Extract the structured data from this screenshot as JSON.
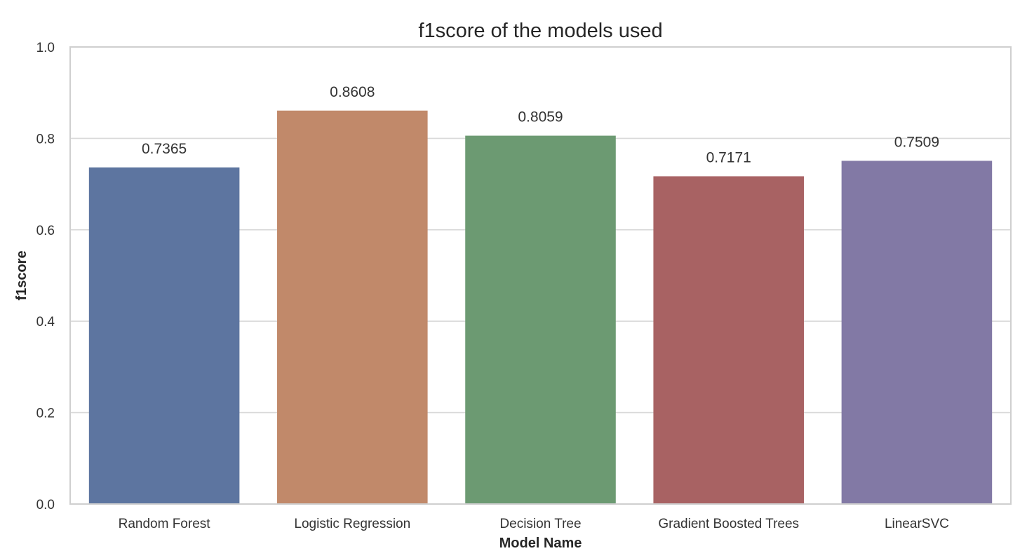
{
  "chart_data": {
    "type": "bar",
    "title": "f1score of the models used",
    "xlabel": "Model Name",
    "ylabel": "f1score",
    "categories": [
      "Random Forest",
      "Logistic Regression",
      "Decision Tree",
      "Gradient Boosted Trees",
      "LinearSVC"
    ],
    "values": [
      0.7365,
      0.8608,
      0.8059,
      0.7171,
      0.7509
    ],
    "value_labels": [
      "0.7365",
      "0.8608",
      "0.8059",
      "0.7171",
      "0.7509"
    ],
    "colors": [
      "#5d75a0",
      "#c1896a",
      "#6c9a72",
      "#a86263",
      "#8279a5"
    ],
    "ylim": [
      0,
      1.0
    ],
    "yticks": [
      0.0,
      0.2,
      0.4,
      0.6,
      0.8,
      1.0
    ],
    "ytick_labels": [
      "0.0",
      "0.2",
      "0.4",
      "0.6",
      "0.8",
      "1.0"
    ],
    "grid": true,
    "legend": false
  }
}
